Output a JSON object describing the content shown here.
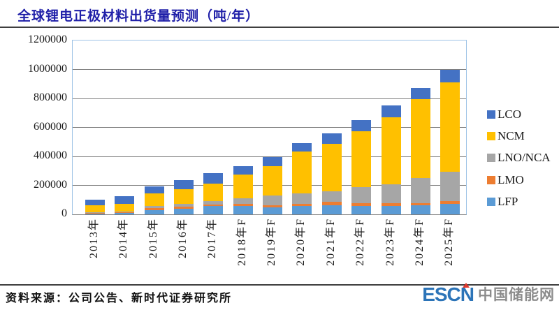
{
  "title": "全球锂电正极材料出货量预测（吨/年）",
  "footer": {
    "source": "资料来源：公司公告、新时代证券研究所"
  },
  "logo": {
    "escn": "ESCN",
    "site_name": "中国储能网",
    "escn_color": "#2C74B8",
    "site_color": "#8C8C8C",
    "accent_color": "#E03A2F"
  },
  "chart_data": {
    "type": "bar",
    "stacked": true,
    "title": "全球锂电正极材料出货量预测（吨/年）",
    "xlabel": "",
    "ylabel": "",
    "categories": [
      "2013年",
      "2014年",
      "2015年",
      "2016年",
      "2017年",
      "2018年F",
      "2019年F",
      "2020年F",
      "2021年F",
      "2022年F",
      "2023年F",
      "2024年F",
      "2025年F"
    ],
    "series": [
      {
        "name": "LCO",
        "color": "#4472C4",
        "values": [
          40000,
          55000,
          52000,
          63000,
          72000,
          61000,
          60000,
          57000,
          75000,
          76000,
          80000,
          76000,
          91000
        ]
      },
      {
        "name": "NCM",
        "color": "#FFC000",
        "values": [
          45000,
          50000,
          86000,
          100000,
          121000,
          165000,
          205000,
          290000,
          324000,
          384000,
          462000,
          544000,
          613000
        ]
      },
      {
        "name": "LNO/NCA",
        "color": "#A6A6A6",
        "values": [
          2000,
          3000,
          13000,
          19000,
          24000,
          37000,
          66000,
          70000,
          76000,
          113000,
          132000,
          171000,
          205000
        ]
      },
      {
        "name": "LMO",
        "color": "#ED7D31",
        "values": [
          8000,
          10000,
          16000,
          13000,
          11000,
          16000,
          16000,
          16000,
          21000,
          19000,
          19000,
          16000,
          17000
        ]
      },
      {
        "name": "LFP",
        "color": "#5B9BD5",
        "values": [
          6000,
          8000,
          28000,
          40000,
          57000,
          56000,
          48000,
          57000,
          64000,
          58000,
          57000,
          63000,
          74000
        ]
      }
    ],
    "totals": [
      101000,
      126000,
      195000,
      235000,
      285000,
      335000,
      395000,
      490000,
      560000,
      650000,
      750000,
      870000,
      1000000
    ],
    "stack_order_bottom_to_top": [
      "LFP",
      "LMO",
      "LNO/NCA",
      "NCM",
      "LCO"
    ],
    "ylim": [
      0,
      1200000
    ],
    "y_tick_step": 200000,
    "grid": true,
    "legend_position": "right",
    "plot_border_color": "#9DC3E6",
    "gridline_color": "#7F7F7F"
  }
}
